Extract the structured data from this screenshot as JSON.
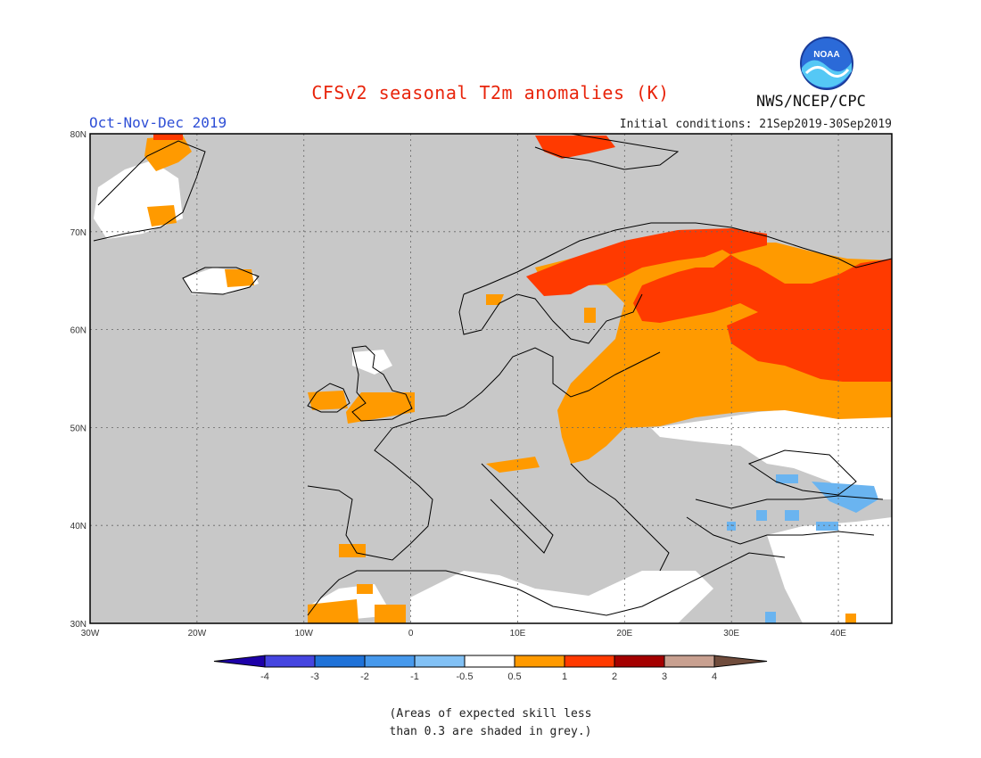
{
  "header": {
    "title": "CFSv2 seasonal T2m anomalies (K)",
    "agency": "NWS/NCEP/CPC",
    "season": "Oct-Nov-Dec 2019",
    "initial_conditions": "Initial conditions: 21Sep2019-30Sep2019",
    "logo_text": "NOAA"
  },
  "map": {
    "lon_range": [
      -30,
      45
    ],
    "lat_range": [
      30,
      80
    ],
    "lon_ticks": [
      "30W",
      "20W",
      "10W",
      "0",
      "10E",
      "20E",
      "30E",
      "40E"
    ],
    "lat_ticks": [
      "30N",
      "40N",
      "50N",
      "60N",
      "70N",
      "80N"
    ],
    "colors": {
      "grey": "#c8c8c8",
      "white": "#ffffff",
      "orange": "#ff9a00",
      "red": "#ff3a00",
      "light_blue": "#6ab4f0",
      "coast": "#000000"
    }
  },
  "legend": {
    "labels": [
      "-4",
      "-3",
      "-2",
      "-1",
      "-0.5",
      "0.5",
      "1",
      "2",
      "3",
      "4"
    ],
    "colors": [
      "#1d00a8",
      "#4545e0",
      "#1f72d8",
      "#4799ec",
      "#82c1f5",
      "#ffffff",
      "#ff9a00",
      "#ff3a00",
      "#a40000",
      "#c8a090",
      "#704c3c"
    ]
  },
  "notes": {
    "line1": "(Areas of expected skill less",
    "line2": "than 0.3 are shaded in grey.)"
  }
}
